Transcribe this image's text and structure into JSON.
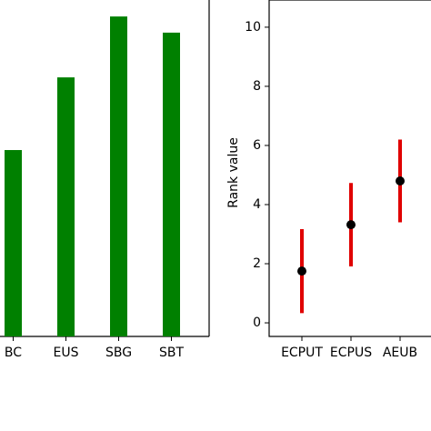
{
  "chart_data": [
    {
      "type": "bar",
      "categories": [
        "BC",
        "EUS",
        "SBG",
        "SBT"
      ],
      "values": [
        55.4,
        77,
        95.1,
        90.3
      ],
      "color": "#008000",
      "ylim": [
        0,
        100
      ]
    },
    {
      "type": "errorbar",
      "ylabel": "Rank value",
      "categories": [
        "ECPUT",
        "ECPUS",
        "AEUB"
      ],
      "values": [
        1.75,
        3.32,
        4.8
      ],
      "errors": [
        1.42,
        1.41,
        1.4
      ],
      "color": "#e00000",
      "marker_color": "#000000",
      "ylim": [
        -0.46,
        10.92
      ],
      "yticks": [
        0,
        2,
        4,
        6,
        8,
        10
      ]
    }
  ]
}
